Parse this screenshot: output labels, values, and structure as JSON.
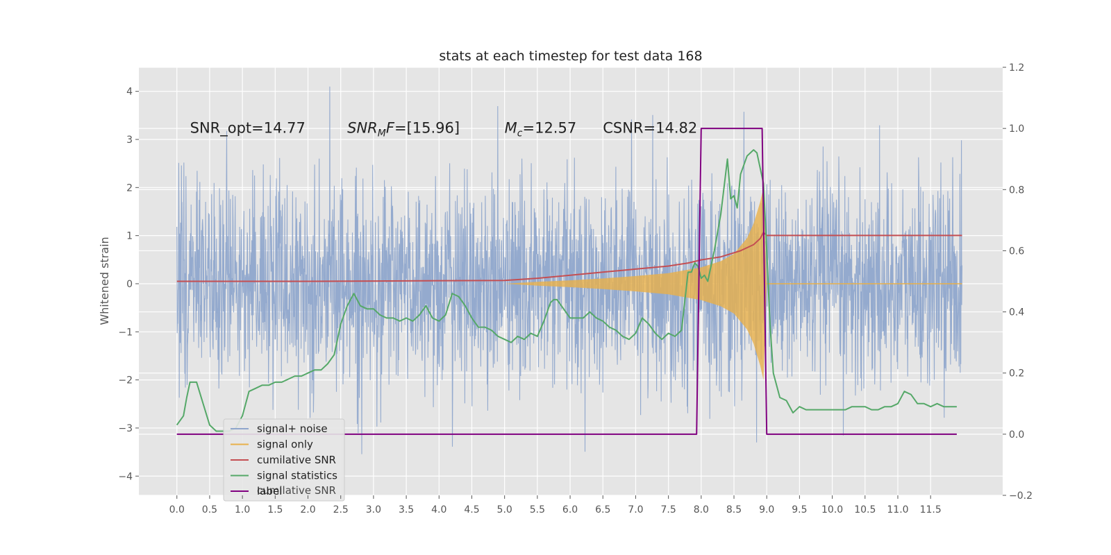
{
  "chart_data": {
    "type": "line",
    "title": "stats at each timestep for test data 168",
    "xlabel": "",
    "ylabel": "Whitened strain",
    "xlim": [
      -0.58,
      12.6
    ],
    "ylim": [
      -4.4,
      4.5
    ],
    "y2lim": [
      -0.2,
      1.2
    ],
    "x_ticks": [
      0.0,
      0.5,
      1.0,
      1.5,
      2.0,
      2.5,
      3.0,
      3.5,
      4.0,
      4.5,
      5.0,
      5.5,
      6.0,
      6.5,
      7.0,
      7.5,
      8.0,
      8.5,
      9.0,
      9.5,
      10.0,
      10.5,
      11.0,
      11.5
    ],
    "x_tick_labels": [
      "0.0",
      "0.5",
      "1.0",
      "1.5",
      "2.0",
      "2.5",
      "3.0",
      "3.5",
      "4.0",
      "4.5",
      "5.0",
      "5.5",
      "6.0",
      "6.5",
      "7.0",
      "7.5",
      "8.0",
      "8.5",
      "9.0",
      "9.5",
      "10.0",
      "10.5",
      "11.0",
      "11.5"
    ],
    "y_ticks": [
      -4,
      -3,
      -2,
      -1,
      0,
      1,
      2,
      3,
      4
    ],
    "y_tick_labels": [
      "−4",
      "−3",
      "−2",
      "−1",
      "0",
      "1",
      "2",
      "3",
      "4"
    ],
    "y2_ticks": [
      -0.2,
      0.0,
      0.2,
      0.4,
      0.6,
      0.8,
      1.0,
      1.2
    ],
    "y2_tick_labels": [
      "−0.2",
      "0.0",
      "0.2",
      "0.4",
      "0.6",
      "0.8",
      "1.0",
      "1.2"
    ],
    "grid": true,
    "legend_position": "lower-left",
    "annotations": [
      {
        "x": 0.2,
        "y": 3.25,
        "text": "SNR_opt=14.77"
      },
      {
        "x": 2.6,
        "y": 3.25,
        "text": "SNR_MF=[15.96]"
      },
      {
        "x": 5.0,
        "y": 3.25,
        "text": "M_c=12.57"
      },
      {
        "x": 6.5,
        "y": 3.25,
        "text": "CSNR=14.82"
      }
    ],
    "series": [
      {
        "name": "signal+ noise",
        "color": "#8fa6cc",
        "axis": "left",
        "kind": "noise",
        "x_range": [
          0.0,
          11.98
        ],
        "amplitude": 1.05,
        "range": [
          -4.0,
          4.1
        ]
      },
      {
        "name": "signal only",
        "color": "#e8b04a",
        "axis": "left",
        "kind": "chirp",
        "x": [
          5.0,
          5.5,
          6.0,
          6.5,
          7.0,
          7.5,
          8.0,
          8.3,
          8.5,
          8.7,
          8.8,
          8.9,
          8.95,
          9.0
        ],
        "envelope": [
          0.0,
          0.04,
          0.07,
          0.11,
          0.16,
          0.22,
          0.34,
          0.47,
          0.62,
          0.95,
          1.25,
          1.7,
          2.0,
          0.0
        ]
      },
      {
        "name": "cumilative SNR",
        "color": "#c44e52",
        "axis": "right",
        "x": [
          0.0,
          1.0,
          2.0,
          3.0,
          4.0,
          5.0,
          5.5,
          6.0,
          6.5,
          7.0,
          7.5,
          7.8,
          8.0,
          8.3,
          8.6,
          8.8,
          8.9,
          8.95,
          9.0,
          9.5,
          10.0,
          11.0,
          11.98
        ],
        "values": [
          0.5,
          0.5,
          0.5,
          0.501,
          0.502,
          0.503,
          0.51,
          0.52,
          0.53,
          0.54,
          0.55,
          0.56,
          0.57,
          0.58,
          0.6,
          0.62,
          0.64,
          0.66,
          0.65,
          0.65,
          0.65,
          0.65,
          0.65
        ]
      },
      {
        "name": "signal statistics",
        "color": "#55a868",
        "axis": "right",
        "x": [
          0.0,
          0.1,
          0.15,
          0.2,
          0.3,
          0.4,
          0.5,
          0.6,
          0.7,
          0.8,
          0.9,
          1.0,
          1.1,
          1.2,
          1.3,
          1.4,
          1.5,
          1.6,
          1.7,
          1.8,
          1.9,
          2.0,
          2.1,
          2.2,
          2.3,
          2.4,
          2.5,
          2.6,
          2.7,
          2.8,
          2.9,
          3.0,
          3.1,
          3.2,
          3.3,
          3.4,
          3.5,
          3.6,
          3.7,
          3.8,
          3.9,
          4.0,
          4.1,
          4.2,
          4.3,
          4.4,
          4.5,
          4.6,
          4.7,
          4.8,
          4.9,
          5.0,
          5.1,
          5.2,
          5.3,
          5.4,
          5.5,
          5.6,
          5.7,
          5.75,
          5.8,
          5.9,
          6.0,
          6.1,
          6.2,
          6.3,
          6.4,
          6.5,
          6.6,
          6.7,
          6.8,
          6.9,
          7.0,
          7.1,
          7.2,
          7.3,
          7.4,
          7.5,
          7.6,
          7.7,
          7.8,
          7.85,
          7.9,
          7.95,
          8.0,
          8.05,
          8.1,
          8.2,
          8.3,
          8.4,
          8.45,
          8.5,
          8.55,
          8.6,
          8.7,
          8.8,
          8.85,
          8.9,
          8.95,
          9.0,
          9.05,
          9.1,
          9.2,
          9.3,
          9.4,
          9.5,
          9.6,
          9.7,
          9.8,
          9.9,
          10.0,
          10.1,
          10.2,
          10.3,
          10.4,
          10.5,
          10.6,
          10.7,
          10.8,
          10.9,
          11.0,
          11.1,
          11.2,
          11.3,
          11.4,
          11.5,
          11.6,
          11.7,
          11.8,
          11.9
        ],
        "values": [
          0.03,
          0.06,
          0.12,
          0.17,
          0.17,
          0.1,
          0.03,
          0.01,
          0.01,
          0.01,
          0.02,
          0.06,
          0.14,
          0.15,
          0.16,
          0.16,
          0.17,
          0.17,
          0.18,
          0.19,
          0.19,
          0.2,
          0.21,
          0.21,
          0.23,
          0.26,
          0.36,
          0.42,
          0.46,
          0.42,
          0.41,
          0.41,
          0.39,
          0.38,
          0.38,
          0.37,
          0.38,
          0.37,
          0.39,
          0.42,
          0.38,
          0.37,
          0.39,
          0.46,
          0.45,
          0.42,
          0.38,
          0.35,
          0.35,
          0.34,
          0.32,
          0.31,
          0.3,
          0.32,
          0.31,
          0.33,
          0.32,
          0.37,
          0.43,
          0.44,
          0.44,
          0.41,
          0.38,
          0.38,
          0.38,
          0.4,
          0.38,
          0.37,
          0.35,
          0.34,
          0.32,
          0.31,
          0.33,
          0.38,
          0.36,
          0.33,
          0.31,
          0.33,
          0.32,
          0.34,
          0.53,
          0.53,
          0.56,
          0.55,
          0.51,
          0.52,
          0.5,
          0.6,
          0.72,
          0.9,
          0.77,
          0.78,
          0.74,
          0.85,
          0.91,
          0.93,
          0.92,
          0.87,
          0.82,
          0.6,
          0.36,
          0.2,
          0.12,
          0.11,
          0.07,
          0.09,
          0.08,
          0.08,
          0.08,
          0.08,
          0.08,
          0.08,
          0.08,
          0.09,
          0.09,
          0.09,
          0.08,
          0.08,
          0.09,
          0.09,
          0.1,
          0.14,
          0.13,
          0.1,
          0.1,
          0.09,
          0.1,
          0.09,
          0.09,
          0.09
        ]
      },
      {
        "name": "label",
        "color": "#800080",
        "axis": "right",
        "x": [
          0.0,
          7.93,
          8.0,
          8.93,
          9.0,
          11.9
        ],
        "values": [
          0.0,
          0.0,
          1.0,
          1.0,
          0.0,
          0.0
        ]
      }
    ],
    "legend_ghost_text": "cumilative SNR"
  }
}
